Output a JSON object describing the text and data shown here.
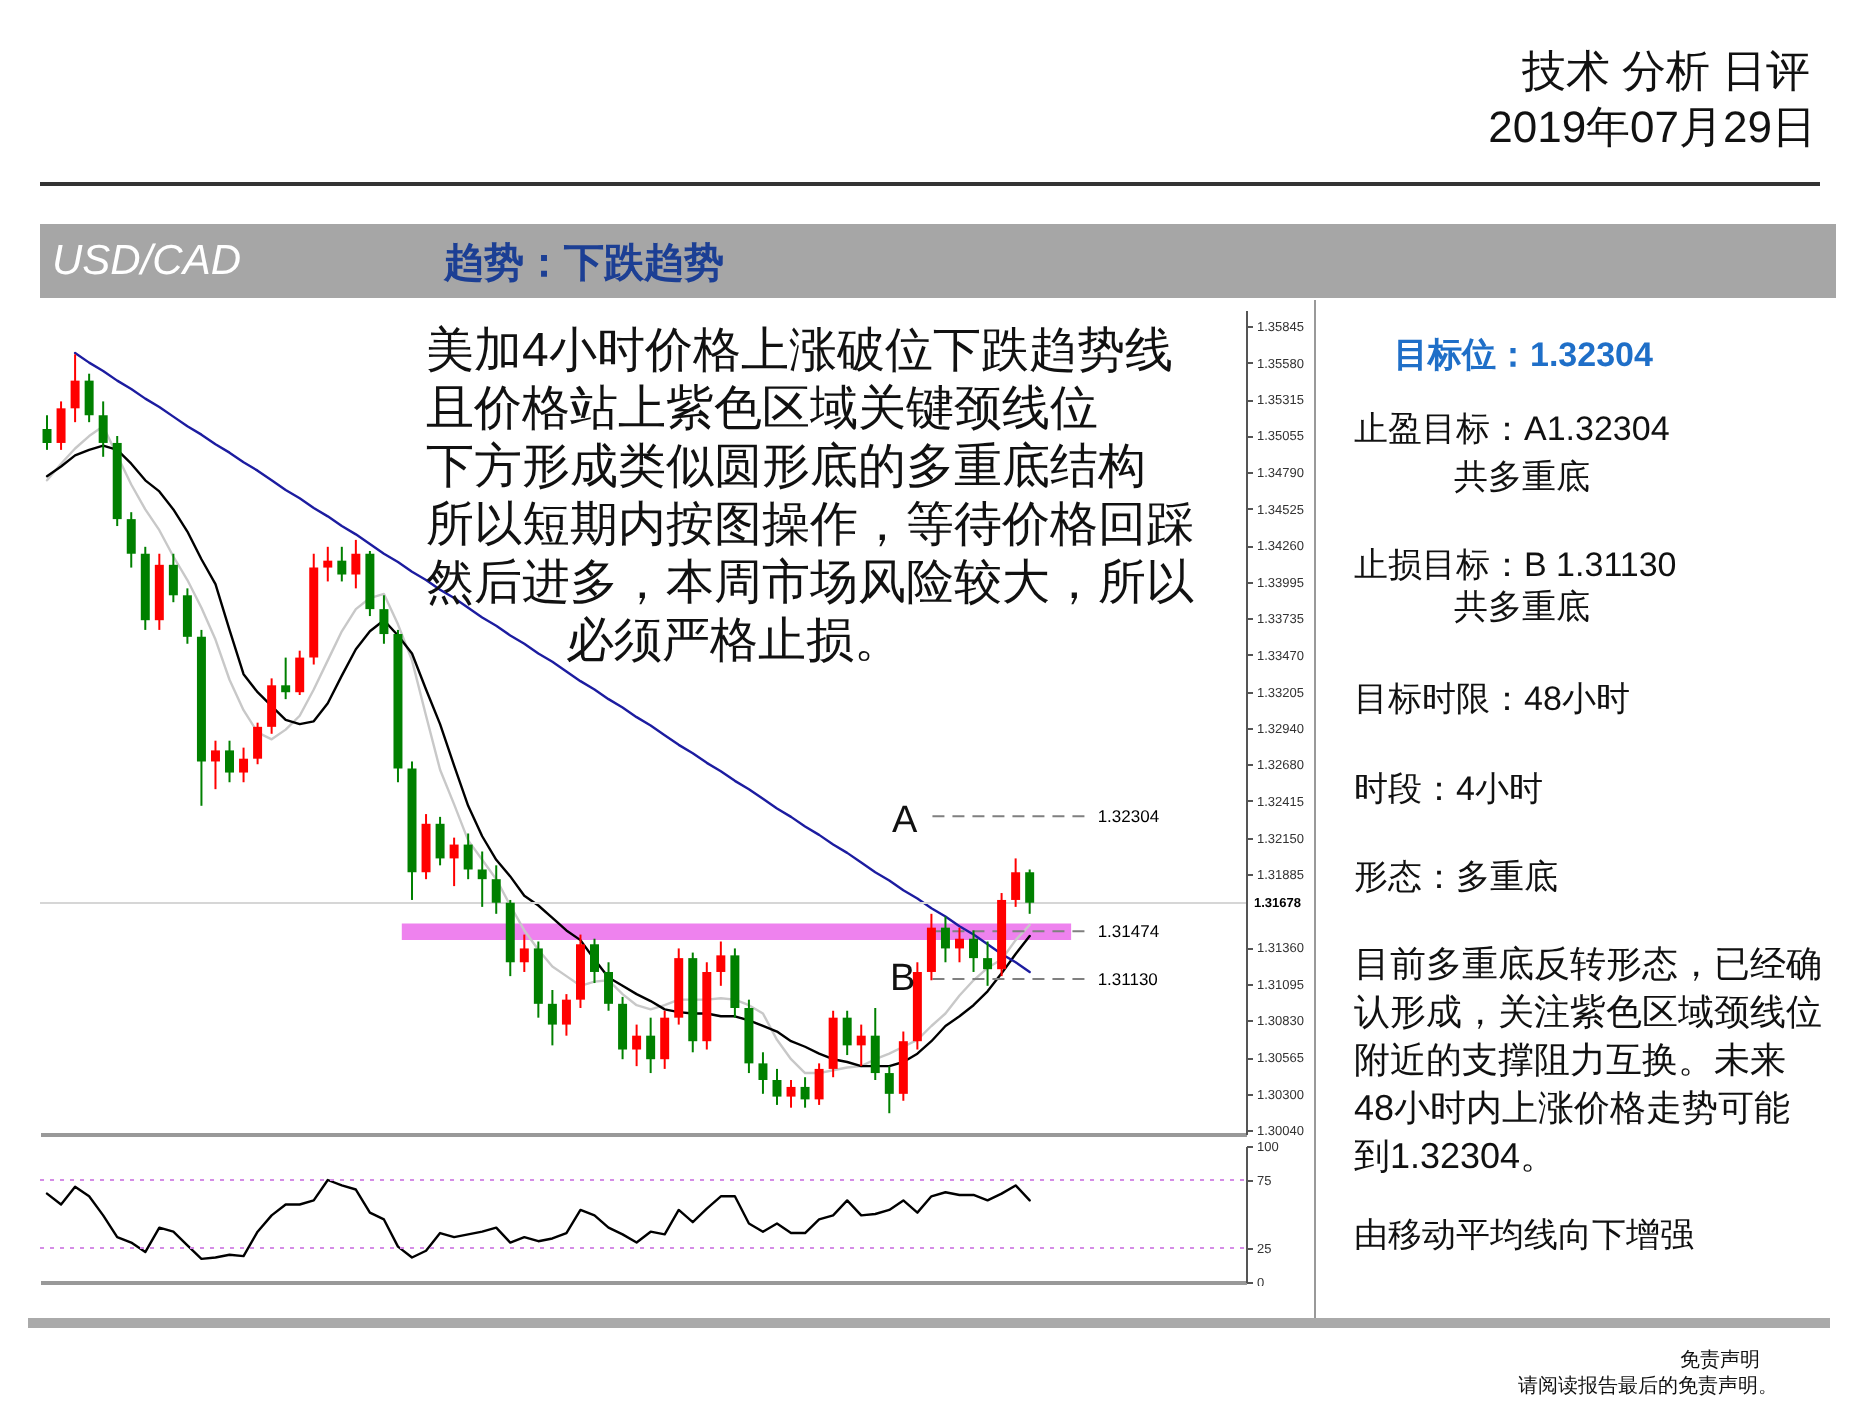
{
  "chart_data": [
    {
      "type": "candlestick",
      "title": "USD/CAD",
      "subtitle": "趋势：下跌趋势",
      "categories": [
        null,
        null,
        null,
        null,
        null,
        null,
        null,
        null,
        null,
        null,
        null,
        null,
        null,
        null,
        null,
        null,
        null,
        null,
        null,
        null,
        null,
        null,
        null,
        null,
        null,
        null,
        null,
        null,
        null,
        null,
        null,
        null,
        null,
        null,
        null,
        null,
        null,
        null,
        null,
        null,
        null,
        null,
        null,
        null,
        null,
        null,
        null,
        null,
        null,
        null,
        null,
        null,
        null,
        null,
        null,
        null,
        null,
        null,
        null,
        null,
        null,
        null,
        null,
        null,
        null,
        null,
        null,
        null,
        null,
        null,
        null
      ],
      "ohlc": [
        [
          1.351,
          1.352,
          1.3495,
          1.35
        ],
        [
          1.35,
          1.353,
          1.3495,
          1.3525
        ],
        [
          1.3525,
          1.3564,
          1.3515,
          1.3545
        ],
        [
          1.3545,
          1.355,
          1.3515,
          1.352
        ],
        [
          1.352,
          1.353,
          1.349,
          1.35
        ],
        [
          1.35,
          1.3505,
          1.344,
          1.3445
        ],
        [
          1.3445,
          1.345,
          1.341,
          1.342
        ],
        [
          1.342,
          1.3425,
          1.3365,
          1.3372
        ],
        [
          1.3372,
          1.342,
          1.3365,
          1.3412
        ],
        [
          1.3412,
          1.342,
          1.3385,
          1.339
        ],
        [
          1.339,
          1.3395,
          1.3355,
          1.336
        ],
        [
          1.336,
          1.3365,
          1.3238,
          1.327
        ],
        [
          1.327,
          1.3285,
          1.325,
          1.3278
        ],
        [
          1.3278,
          1.3285,
          1.3255,
          1.3262
        ],
        [
          1.3262,
          1.328,
          1.3255,
          1.3272
        ],
        [
          1.3272,
          1.3298,
          1.3268,
          1.3295
        ],
        [
          1.3295,
          1.333,
          1.329,
          1.3325
        ],
        [
          1.3325,
          1.3345,
          1.3315,
          1.332
        ],
        [
          1.332,
          1.335,
          1.3318,
          1.3345
        ],
        [
          1.3345,
          1.342,
          1.334,
          1.341
        ],
        [
          1.341,
          1.3425,
          1.34,
          1.3415
        ],
        [
          1.3415,
          1.3425,
          1.34,
          1.3405
        ],
        [
          1.3405,
          1.343,
          1.3395,
          1.342
        ],
        [
          1.342,
          1.3422,
          1.3375,
          1.338
        ],
        [
          1.338,
          1.339,
          1.3355,
          1.3362
        ],
        [
          1.3362,
          1.3365,
          1.3255,
          1.3265
        ],
        [
          1.3265,
          1.327,
          1.317,
          1.319
        ],
        [
          1.319,
          1.3232,
          1.3185,
          1.3225
        ],
        [
          1.3225,
          1.323,
          1.3195,
          1.32
        ],
        [
          1.32,
          1.3215,
          1.318,
          1.321
        ],
        [
          1.321,
          1.3218,
          1.3185,
          1.3192
        ],
        [
          1.3192,
          1.3205,
          1.3165,
          1.3185
        ],
        [
          1.3185,
          1.3195,
          1.316,
          1.3168
        ],
        [
          1.3168,
          1.317,
          1.3115,
          1.3125
        ],
        [
          1.3125,
          1.3145,
          1.3118,
          1.3135
        ],
        [
          1.3135,
          1.314,
          1.3085,
          1.3095
        ],
        [
          1.3095,
          1.3105,
          1.3065,
          1.308
        ],
        [
          1.308,
          1.3102,
          1.3072,
          1.3098
        ],
        [
          1.3098,
          1.3145,
          1.3092,
          1.3138
        ],
        [
          1.3138,
          1.3142,
          1.311,
          1.3118
        ],
        [
          1.3118,
          1.3125,
          1.309,
          1.3095
        ],
        [
          1.3095,
          1.31,
          1.3055,
          1.3062
        ],
        [
          1.3062,
          1.308,
          1.305,
          1.3072
        ],
        [
          1.3072,
          1.3085,
          1.3045,
          1.3055
        ],
        [
          1.3055,
          1.309,
          1.3048,
          1.3085
        ],
        [
          1.3085,
          1.3135,
          1.308,
          1.3128
        ],
        [
          1.3128,
          1.3132,
          1.306,
          1.3068
        ],
        [
          1.3068,
          1.3125,
          1.3062,
          1.3118
        ],
        [
          1.3118,
          1.314,
          1.3108,
          1.313
        ],
        [
          1.313,
          1.3135,
          1.3085,
          1.3092
        ],
        [
          1.3092,
          1.3098,
          1.3045,
          1.3052
        ],
        [
          1.3052,
          1.306,
          1.303,
          1.304
        ],
        [
          1.304,
          1.3048,
          1.3022,
          1.3028
        ],
        [
          1.3028,
          1.304,
          1.302,
          1.3035
        ],
        [
          1.3035,
          1.3042,
          1.302,
          1.3026
        ],
        [
          1.3026,
          1.3052,
          1.3022,
          1.3048
        ],
        [
          1.3048,
          1.309,
          1.3042,
          1.3085
        ],
        [
          1.3085,
          1.309,
          1.3058,
          1.3065
        ],
        [
          1.3065,
          1.308,
          1.305,
          1.3072
        ],
        [
          1.3072,
          1.3092,
          1.304,
          1.3045
        ],
        [
          1.3045,
          1.305,
          1.3016,
          1.303
        ],
        [
          1.303,
          1.3075,
          1.3025,
          1.3068
        ],
        [
          1.3068,
          1.3125,
          1.3062,
          1.3118
        ],
        [
          1.3118,
          1.316,
          1.3112,
          1.315
        ],
        [
          1.315,
          1.3158,
          1.3125,
          1.3135
        ],
        [
          1.3135,
          1.315,
          1.3125,
          1.3142
        ],
        [
          1.3142,
          1.3148,
          1.3118,
          1.3128
        ],
        [
          1.3128,
          1.314,
          1.3108,
          1.312
        ],
        [
          1.312,
          1.3175,
          1.3115,
          1.317
        ],
        [
          1.317,
          1.32,
          1.3165,
          1.319
        ],
        [
          1.319,
          1.3192,
          1.316,
          1.3168
        ]
      ],
      "colors": [
        "#008000",
        "#ff0000",
        "#ff0000",
        "#008000",
        "#008000",
        "#008000",
        "#008000",
        "#008000",
        "#ff0000",
        "#008000",
        "#008000",
        "#008000",
        "#ff0000",
        "#008000",
        "#ff0000",
        "#ff0000",
        "#ff0000",
        "#008000",
        "#ff0000",
        "#ff0000",
        "#ff0000",
        "#008000",
        "#ff0000",
        "#008000",
        "#008000",
        "#008000",
        "#008000",
        "#ff0000",
        "#008000",
        "#ff0000",
        "#008000",
        "#008000",
        "#008000",
        "#008000",
        "#ff0000",
        "#008000",
        "#008000",
        "#ff0000",
        "#ff0000",
        "#008000",
        "#008000",
        "#008000",
        "#ff0000",
        "#008000",
        "#ff0000",
        "#ff0000",
        "#008000",
        "#ff0000",
        "#ff0000",
        "#008000",
        "#008000",
        "#008000",
        "#008000",
        "#ff0000",
        "#008000",
        "#ff0000",
        "#ff0000",
        "#008000",
        "#ff0000",
        "#008000",
        "#008000",
        "#ff0000",
        "#ff0000",
        "#ff0000",
        "#008000",
        "#ff0000",
        "#008000",
        "#008000",
        "#ff0000",
        "#ff0000",
        "#008000"
      ],
      "series": [
        {
          "type": "line",
          "color": "#c8c8c8",
          "values": [
            1.3473,
            1.3485,
            1.3496,
            1.3505,
            1.3512,
            1.3491,
            1.347,
            1.3452,
            1.3437,
            1.3418,
            1.3401,
            1.3381,
            1.3358,
            1.3329,
            1.3307,
            1.3291,
            1.3286,
            1.3293,
            1.3303,
            1.3322,
            1.3343,
            1.3364,
            1.338,
            1.3388,
            1.3391,
            1.3369,
            1.3343,
            1.3303,
            1.3264,
            1.3239,
            1.3213,
            1.3199,
            1.3185,
            1.3166,
            1.3148,
            1.3134,
            1.3122,
            1.3115,
            1.3108,
            1.3111,
            1.3112,
            1.3102,
            1.3094,
            1.3091,
            1.3094,
            1.3098,
            1.3098,
            1.3098,
            1.3099,
            1.3098,
            1.3094,
            1.3088,
            1.3069,
            1.3055,
            1.3045,
            1.3045,
            1.3047,
            1.3049,
            1.305,
            1.3055,
            1.3059,
            1.3064,
            1.3069,
            1.3079,
            1.3088,
            1.3101,
            1.3112,
            1.3121,
            1.3127,
            1.3141,
            1.3152
          ]
        },
        {
          "type": "line",
          "color": "#000000",
          "values": [
            1.3476,
            1.3483,
            1.3491,
            1.3495,
            1.3498,
            1.3495,
            1.3485,
            1.3473,
            1.3465,
            1.3452,
            1.3436,
            1.3416,
            1.3398,
            1.3365,
            1.3333,
            1.332,
            1.331,
            1.33,
            1.3297,
            1.3299,
            1.3312,
            1.3332,
            1.3351,
            1.3364,
            1.3372,
            1.3361,
            1.3348,
            1.3322,
            1.3297,
            1.3267,
            1.3238,
            1.3216,
            1.3199,
            1.3187,
            1.3173,
            1.3166,
            1.3157,
            1.3148,
            1.3141,
            1.3127,
            1.3114,
            1.3108,
            1.3102,
            1.3097,
            1.3091,
            1.3089,
            1.3088,
            1.3088,
            1.3086,
            1.3086,
            1.3083,
            1.3079,
            1.3075,
            1.3068,
            1.3064,
            1.3059,
            1.3055,
            1.3053,
            1.305,
            1.305,
            1.305,
            1.3053,
            1.3059,
            1.3068,
            1.3079,
            1.3086,
            1.3094,
            1.3104,
            1.3117,
            1.3131,
            1.3144
          ]
        },
        {
          "type": "line",
          "color": "#1c1ca0",
          "values": [
            null,
            null,
            1.3565,
            1.3558,
            1.3552,
            1.3545,
            1.3539,
            1.3532,
            1.3526,
            1.3519,
            1.3512,
            1.3506,
            1.3499,
            1.3493,
            1.3486,
            1.348,
            1.3473,
            1.3466,
            1.346,
            1.3453,
            1.3447,
            1.344,
            1.3434,
            1.3427,
            1.342,
            1.3414,
            1.3407,
            1.3401,
            1.3394,
            1.3388,
            1.3381,
            1.3374,
            1.3368,
            1.3361,
            1.3355,
            1.3348,
            1.3342,
            1.3335,
            1.3328,
            1.3322,
            1.3315,
            1.3309,
            1.3302,
            1.3296,
            1.3289,
            1.3282,
            1.3276,
            1.3269,
            1.3263,
            1.3256,
            1.325,
            1.3243,
            1.3236,
            1.323,
            1.3223,
            1.3217,
            1.321,
            1.3204,
            1.3197,
            1.319,
            1.3184,
            1.3177,
            1.3171,
            1.3164,
            1.3158,
            1.3151,
            1.3145,
            1.3138,
            1.3131,
            1.3125,
            1.3118
          ]
        }
      ],
      "ylim": [
        1.3001,
        1.3596
      ],
      "yticks": [
        1.35845,
        {
          "value": 1.3558,
          "label": "1.35580"
        },
        1.35315,
        1.35055,
        {
          "value": 1.3479,
          "label": "1.34790"
        },
        1.34525,
        {
          "value": 1.3426,
          "label": "1.34260"
        },
        1.33995,
        1.33735,
        {
          "value": 1.3347,
          "label": "1.33470"
        },
        1.33205,
        {
          "value": 1.3294,
          "label": "1.32940"
        },
        {
          "value": 1.3268,
          "label": "1.32680"
        },
        1.32415,
        {
          "value": 1.3215,
          "label": "1.32150"
        },
        1.31885,
        {
          "value": 1.3136,
          "label": "1.31360"
        },
        1.31095,
        {
          "value": 1.3083,
          "label": "1.30830"
        },
        1.30565,
        {
          "value": 1.303,
          "label": "1.30300"
        },
        {
          "value": 1.3004,
          "label": "1.30040"
        }
      ],
      "bands": [
        {
          "axis": "y",
          "from": 1.3141,
          "to": 1.3153,
          "color": "#ee82ee"
        }
      ],
      "ref_lines": [
        {
          "axis": "y",
          "value": 1.31678,
          "label": "1.31678",
          "color": "#d6d6d6"
        },
        {
          "axis": "y",
          "value": 1.32304,
          "label": "1.32304",
          "color": "#808080",
          "line_style": "dashed"
        },
        {
          "axis": "y",
          "value": 1.31474,
          "label": "1.31474",
          "color": "#808080",
          "line_style": "dashed"
        },
        {
          "axis": "y",
          "value": 1.3113,
          "label": "1.31130",
          "color": "#808080",
          "line_style": "dashed"
        }
      ],
      "annotations": [
        "美加4小时价格上涨破位下跌趋势线",
        "且价格站上紫色区域关键颈线位",
        "下方形成类似圆形底的多重底结构",
        "所以短期内按图操作，等待价格回踩",
        "然后进多，本周市场风险较大，所以",
        "必须严格止损。",
        "A",
        "B"
      ],
      "tick_labels": "y"
    },
    {
      "type": "line",
      "categories": [
        null,
        null,
        null,
        null,
        null,
        null,
        null,
        null,
        null,
        null,
        null,
        null,
        null,
        null,
        null,
        null,
        null,
        null,
        null,
        null,
        null,
        null,
        null,
        null,
        null,
        null,
        null,
        null,
        null,
        null,
        null,
        null,
        null,
        null,
        null,
        null,
        null,
        null,
        null,
        null,
        null,
        null,
        null,
        null,
        null,
        null,
        null,
        null,
        null,
        null,
        null,
        null,
        null,
        null,
        null,
        null,
        null,
        null,
        null,
        null,
        null,
        null,
        null,
        null,
        null,
        null,
        null,
        null,
        null,
        null,
        null
      ],
      "series": [
        {
          "color": "#000000",
          "values": [
            65,
            57,
            70,
            63,
            49,
            33,
            29,
            22,
            40,
            37,
            27,
            17,
            18,
            20,
            19,
            37,
            49,
            57,
            57,
            60,
            75,
            71,
            68,
            51,
            46,
            26,
            18,
            23,
            36,
            33,
            35,
            37,
            40,
            29,
            33,
            30,
            32,
            36,
            53,
            49,
            40,
            35,
            29,
            37,
            35,
            53,
            44,
            54,
            63,
            63,
            43,
            37,
            43,
            36,
            36,
            46,
            49,
            60,
            49,
            50,
            53,
            60,
            51,
            63,
            66,
            64,
            64,
            60,
            65,
            71,
            60
          ]
        }
      ],
      "ylim": [
        0,
        100
      ],
      "yticks": [
        0,
        25,
        75,
        100
      ],
      "ref_lines": [
        {
          "axis": "y",
          "value": 25,
          "color": "#d58ce6",
          "line_style": "dotted"
        },
        {
          "axis": "y",
          "value": 75,
          "color": "#d58ce6",
          "line_style": "dotted"
        }
      ],
      "tick_labels": "y"
    },
    {
      "type": "other",
      "title": "技术 分析 日评",
      "subtitle": "2019年07月29日",
      "annotations": [
        "目标位：1.32304",
        "止盈目标：A1.32304",
        "共多重底",
        "止损目标：B  1.31130",
        "共多重底",
        "目标时限：48小时",
        "时段：4小时",
        "形态：多重底",
        "目前多重底反转形态，已经确认形成，关注紫色区域颈线位附近的支撑阻力互换。未来48小时内上涨价格走势可能到1.32304。",
        "由移动平均线向下增强",
        "免责声明",
        "请阅读报告最后的免责声明。"
      ]
    }
  ]
}
